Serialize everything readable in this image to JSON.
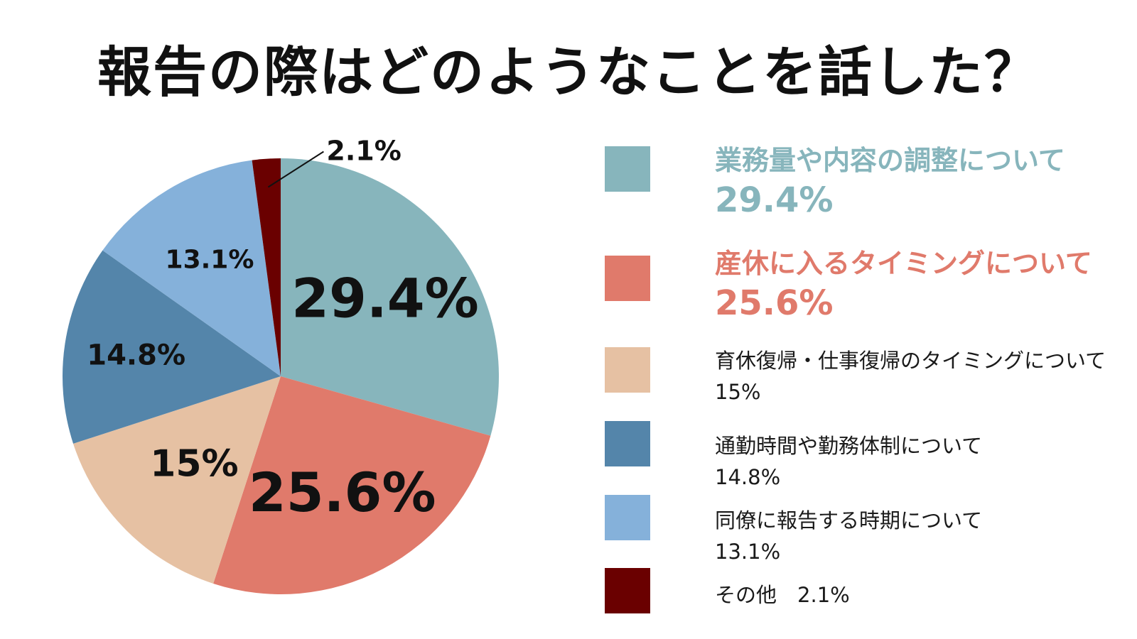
{
  "chart_data": {
    "type": "pie",
    "title": "報告の際はどのようなことを話した？",
    "categories": [
      "業務量や内容の調整について",
      "産休に入るタイミングについて",
      "育休復帰・仕事復帰のタイミングについて",
      "通勤時間や勤務体制について",
      "同僚に報告する時期について",
      "その他"
    ],
    "values": [
      29.4,
      25.6,
      15,
      14.8,
      13.1,
      2.1
    ],
    "value_labels": [
      "29.4%",
      "25.6%",
      "15%",
      "14.8%",
      "13.1%",
      "2.1%"
    ],
    "colors": [
      "#87b5bc",
      "#e07a6b",
      "#e6c1a3",
      "#5485aa",
      "#85b1da",
      "#6a0000"
    ],
    "legend_position": "right",
    "start_angle": "12 o'clock, clockwise"
  },
  "legend": {
    "items": [
      {
        "label": "業務量や内容の調整について",
        "value": "29.4%",
        "style": "big"
      },
      {
        "label": "産休に入るタイミングについて",
        "value": "25.6%",
        "style": "big"
      },
      {
        "label": "育休復帰・仕事復帰のタイミングについて",
        "value": "15%",
        "style": "small"
      },
      {
        "label": "通勤時間や勤務体制について",
        "value": "14.8%",
        "style": "small"
      },
      {
        "label": "同僚に報告する時期について",
        "value": "13.1%",
        "style": "small"
      },
      {
        "label": "その他",
        "value": "2.1%",
        "style": "inline"
      }
    ]
  }
}
